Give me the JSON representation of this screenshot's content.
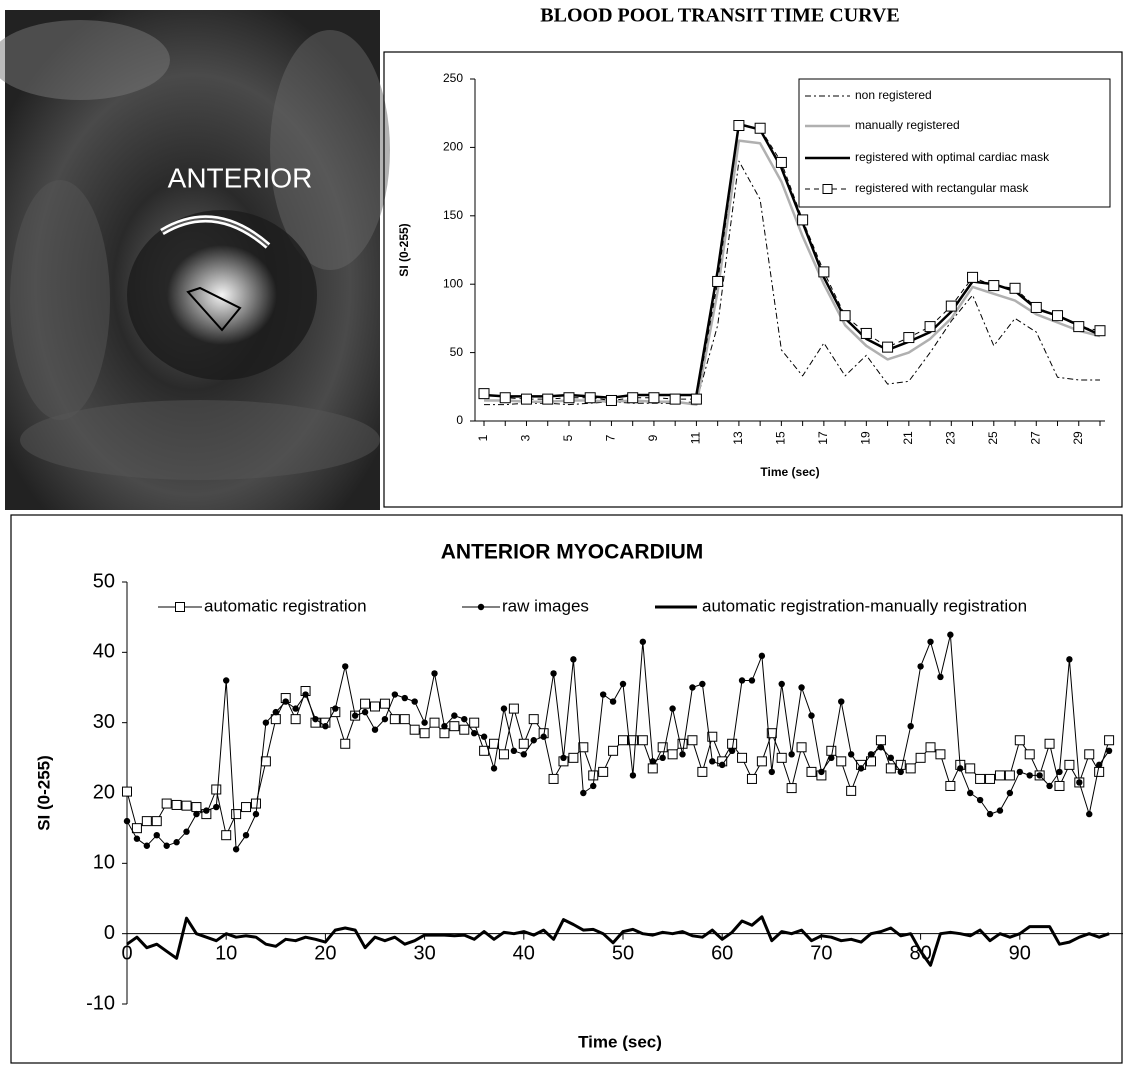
{
  "image": {
    "label": "ANTERIOR"
  },
  "chart_data": [
    {
      "type": "line",
      "title": "BLOOD POOL TRANSIT TIME CURVE",
      "x_label": "Time (sec)",
      "y_label": "SI (0-255)",
      "categories": [
        "1",
        null,
        "3",
        null,
        "5",
        null,
        "7",
        null,
        "9",
        null,
        "11",
        null,
        "13",
        null,
        "15",
        null,
        "17",
        null,
        "19",
        null,
        "21",
        null,
        "23",
        null,
        "25",
        null,
        "27",
        null,
        "29",
        null
      ],
      "ylim": [
        0,
        250
      ],
      "yticks": [
        0,
        50,
        100,
        150,
        200,
        250
      ],
      "grid": false,
      "legend": "upper-right",
      "series": [
        {
          "name": "non registered",
          "color": "#000000",
          "dash": "6,3,2,3",
          "width": 1,
          "marker": "none",
          "values": [
            12,
            12,
            13,
            13,
            12,
            13,
            14,
            13,
            13,
            13,
            14,
            70,
            190,
            162,
            52,
            33,
            57,
            33,
            48,
            27,
            29,
            50,
            73,
            92,
            55,
            75,
            65,
            32,
            30,
            30
          ]
        },
        {
          "name": "manually registered",
          "color": "#b0b0b0",
          "dash": "none",
          "width": 2.5,
          "marker": "none",
          "values": [
            15,
            15,
            14,
            14,
            15,
            15,
            14,
            15,
            14,
            14,
            12,
            95,
            205,
            203,
            175,
            135,
            100,
            70,
            55,
            45,
            50,
            60,
            75,
            98,
            93,
            88,
            78,
            72,
            66,
            62
          ]
        },
        {
          "name": "registered with optimal cardiac mask",
          "color": "#000000",
          "dash": "none",
          "width": 2.5,
          "marker": "none",
          "values": [
            19,
            18,
            18,
            18,
            19,
            18,
            17,
            19,
            19,
            19,
            19,
            110,
            217,
            213,
            185,
            145,
            105,
            75,
            60,
            52,
            58,
            65,
            80,
            102,
            100,
            95,
            82,
            77,
            70,
            63
          ]
        },
        {
          "name": "registered with rectangular mask",
          "color": "#000000",
          "dash": "5,4",
          "width": 1,
          "marker": "square",
          "values": [
            20,
            17,
            16,
            16,
            17,
            17,
            15,
            17,
            17,
            16,
            16,
            102,
            216,
            214,
            189,
            147,
            109,
            77,
            64,
            54,
            61,
            69,
            84,
            105,
            99,
            97,
            83,
            77,
            69,
            66
          ]
        }
      ]
    },
    {
      "type": "line",
      "title": "ANTERIOR MYOCARDIUM",
      "x_label": "Time (sec)",
      "y_label": "SI (0-255)",
      "x": [
        0,
        1,
        2,
        3,
        4,
        5,
        6,
        7,
        8,
        9,
        10,
        11,
        12,
        13,
        14,
        15,
        16,
        17,
        18,
        19,
        20,
        21,
        22,
        23,
        24,
        25,
        26,
        27,
        28,
        29,
        30,
        31,
        32,
        33,
        34,
        35,
        36,
        37,
        38,
        39,
        40,
        41,
        42,
        43,
        44,
        45,
        46,
        47,
        48,
        49,
        50,
        51,
        52,
        53,
        54,
        55,
        56,
        57,
        58,
        59,
        60,
        61,
        62,
        63,
        64,
        65,
        66,
        67,
        68,
        69,
        70,
        71,
        72,
        73,
        74,
        75,
        76,
        77,
        78,
        79,
        80,
        81,
        82,
        83,
        84,
        85,
        86,
        87,
        88,
        89,
        90,
        91,
        92,
        93,
        94,
        95,
        96,
        97,
        98,
        99
      ],
      "xlim": [
        0,
        100
      ],
      "xticks": [
        0,
        10,
        20,
        30,
        40,
        50,
        60,
        70,
        80,
        90
      ],
      "ylim": [
        -10,
        50
      ],
      "yticks": [
        -10,
        0,
        10,
        20,
        30,
        40,
        50
      ],
      "grid": false,
      "legend": "top",
      "series": [
        {
          "name": "automatic registration",
          "color": "#000000",
          "dash": "none",
          "width": 1,
          "marker": "square",
          "values": [
            20.2,
            15,
            16,
            16,
            18.5,
            18.3,
            18.2,
            18,
            17,
            20.5,
            14,
            17,
            18,
            18.5,
            24.5,
            30.5,
            33.5,
            30.5,
            34.5,
            30,
            30,
            31.5,
            27,
            31,
            32.7,
            32.3,
            32.7,
            30.5,
            30.5,
            29,
            28.5,
            30,
            28.5,
            29.5,
            29,
            30,
            26,
            27,
            25.5,
            32,
            27,
            30.5,
            28.5,
            22,
            24.5,
            25,
            26.5,
            22.5,
            23,
            26,
            27.5,
            27.5,
            27.5,
            23.5,
            26.5,
            25.5,
            27,
            27.5,
            23,
            28,
            24.5,
            27,
            25,
            22,
            24.5,
            28.5,
            25,
            20.7,
            26.5,
            23,
            22.5,
            26,
            24.5,
            20.3,
            24,
            24.5,
            27.5,
            23.5,
            24,
            23.5,
            25,
            26.5,
            25.5,
            21,
            24,
            23.5,
            22,
            22,
            22.5,
            22.5,
            27.5,
            25.5,
            22.5,
            27,
            21,
            24,
            21.5,
            25.5,
            23,
            27.5
          ]
        },
        {
          "name": "raw images",
          "color": "#000000",
          "dash": "none",
          "width": 1,
          "marker": "dot",
          "values": [
            16,
            13.5,
            12.5,
            14,
            12.5,
            13,
            14.5,
            17,
            17.5,
            18,
            36,
            12,
            14,
            17,
            30,
            31.5,
            33,
            32,
            34,
            30.5,
            29.5,
            32,
            38,
            31,
            31.5,
            29,
            30.5,
            34,
            33.5,
            33,
            30,
            37,
            29.5,
            31,
            30.5,
            28.5,
            28,
            23.5,
            32,
            26,
            25.5,
            27.5,
            28,
            37,
            25,
            39,
            20,
            21,
            34,
            33,
            35.5,
            22.5,
            41.5,
            24.5,
            25,
            32,
            25.5,
            35,
            35.5,
            24.5,
            24,
            26,
            36,
            36,
            39.5,
            23,
            35.5,
            25.5,
            35,
            31,
            23,
            25,
            33,
            25.5,
            23.5,
            25.5,
            26.5,
            25,
            23,
            29.5,
            38,
            41.5,
            36.5,
            42.5,
            23.5,
            20,
            19,
            17,
            17.5,
            20,
            23,
            22.5,
            22.5,
            21,
            23,
            39,
            21.5,
            17,
            24,
            26
          ]
        },
        {
          "name": "automatic registration-manually registration",
          "color": "#000000",
          "dash": "none",
          "width": 3,
          "marker": "none",
          "values": [
            -1.5,
            -0.5,
            -2,
            -1.5,
            -2.5,
            -3.5,
            2.2,
            0,
            -0.5,
            -1,
            0,
            -0.5,
            -0.3,
            -0.5,
            -1.5,
            -1.8,
            -0.8,
            -1,
            -0.5,
            -0.8,
            -1.2,
            0.5,
            0.8,
            0.5,
            -2,
            -0.5,
            -1,
            -0.5,
            -1.5,
            -1,
            -0.2,
            -0.2,
            -0.2,
            -0.3,
            -0.2,
            -0.8,
            0.3,
            -0.8,
            0.2,
            0,
            0.3,
            -0.2,
            0.5,
            -0.8,
            2,
            1.3,
            0.5,
            0.6,
            0,
            -1.3,
            0.3,
            0.6,
            0,
            -0.2,
            0.2,
            0,
            0.3,
            -0.3,
            -0.5,
            0.5,
            -0.8,
            0.2,
            1.8,
            1.2,
            2.4,
            -1,
            0.3,
            0,
            0.5,
            -1,
            -0.3,
            -0.5,
            -1,
            -0.8,
            -1.2,
            0,
            0.3,
            0.8,
            -0.3,
            0,
            -2.5,
            -4.5,
            0,
            0.2,
            0,
            -0.3,
            0.5,
            -1,
            0,
            -0.5,
            0,
            1,
            1,
            1,
            -1.5,
            -1.2,
            -0.5,
            0,
            -0.5,
            0
          ]
        }
      ]
    }
  ]
}
